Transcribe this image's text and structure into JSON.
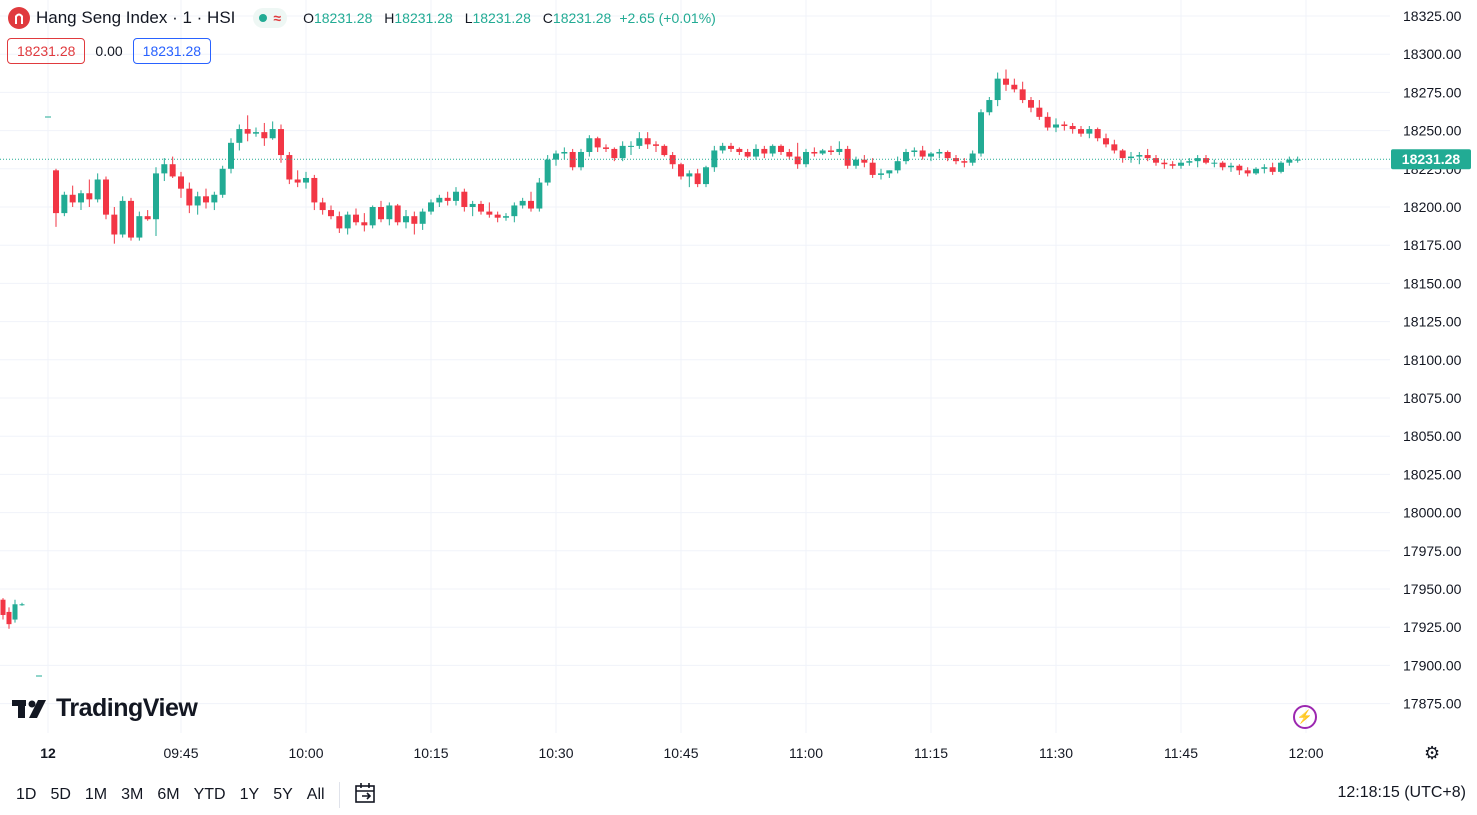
{
  "header": {
    "symbol_icon": "hsi-logo-icon",
    "title": "Hang Seng Index · 1 · HSI",
    "status_icon": "market-open-dot-icon",
    "data_icon": "delayed-data-wave-icon",
    "ohlc": [
      {
        "key": "O",
        "value": "18231.28"
      },
      {
        "key": "H",
        "value": "18231.28"
      },
      {
        "key": "L",
        "value": "18231.28"
      },
      {
        "key": "C",
        "value": "18231.28"
      }
    ],
    "change": "+2.65 (+0.01%)",
    "sell_price": "18231.28",
    "spread": "0.00",
    "buy_price": "18231.28"
  },
  "watermark": {
    "logo_icon": "tradingview-logo-icon",
    "text": "TradingView"
  },
  "bottom_bar": {
    "ranges": [
      "1D",
      "5D",
      "1M",
      "3M",
      "6M",
      "YTD",
      "1Y",
      "5Y",
      "All"
    ],
    "goto_icon": "calendar-goto-icon",
    "clock": "12:18:15 (UTC+8)"
  },
  "icons": {
    "bolt": "lightning-icon",
    "settings": "gear-icon"
  },
  "colors": {
    "up": "#22ab94",
    "down": "#f23645",
    "price_tag": "#22ab94",
    "grid": "#f0f3fa"
  },
  "chart_data": {
    "type": "candlestick",
    "symbol": "HSI",
    "interval": "1",
    "y_ticks": [
      "18325.00",
      "18300.00",
      "18275.00",
      "18250.00",
      "18225.00",
      "18200.00",
      "18175.00",
      "18150.00",
      "18125.00",
      "18100.00",
      "18075.00",
      "18050.00",
      "18025.00",
      "18000.00",
      "17975.00",
      "17950.00",
      "17925.00",
      "17900.00",
      "17875.00"
    ],
    "ylim": [
      17863,
      18335
    ],
    "x_ticks": [
      "12",
      "09:45",
      "10:00",
      "10:15",
      "10:30",
      "10:45",
      "11:00",
      "11:15",
      "11:30",
      "11:45",
      "12:00"
    ],
    "last_price": "18231.28",
    "grid": true,
    "previous_session_tail": [
      {
        "o": 17943,
        "h": 17944,
        "l": 17930,
        "c": 17933
      },
      {
        "o": 17935,
        "h": 17938,
        "l": 17924,
        "c": 17927
      },
      {
        "o": 17930,
        "h": 17943,
        "l": 17928,
        "c": 17940
      },
      {
        "o": 17940,
        "h": 17941,
        "l": 17939,
        "c": 17940
      }
    ],
    "candles": [
      [
        18224,
        18225,
        18187,
        18196
      ],
      [
        18196,
        18210,
        18194,
        18208
      ],
      [
        18208,
        18214,
        18200,
        18203
      ],
      [
        18203,
        18211,
        18198,
        18209
      ],
      [
        18209,
        18218,
        18200,
        18205
      ],
      [
        18205,
        18222,
        18203,
        18218
      ],
      [
        18218,
        18220,
        18192,
        18195
      ],
      [
        18195,
        18200,
        18176,
        18182
      ],
      [
        18182,
        18207,
        18180,
        18204
      ],
      [
        18204,
        18206,
        18178,
        18180
      ],
      [
        18180,
        18197,
        18178,
        18194
      ],
      [
        18194,
        18198,
        18191,
        18192
      ],
      [
        18192,
        18226,
        18181,
        18222
      ],
      [
        18222,
        18232,
        18217,
        18228
      ],
      [
        18228,
        18233,
        18219,
        18220
      ],
      [
        18220,
        18223,
        18206,
        18212
      ],
      [
        18212,
        18216,
        18196,
        18201
      ],
      [
        18201,
        18210,
        18195,
        18207
      ],
      [
        18207,
        18212,
        18199,
        18203
      ],
      [
        18203,
        18210,
        18198,
        18208
      ],
      [
        18208,
        18227,
        18206,
        18225
      ],
      [
        18225,
        18245,
        18222,
        18242
      ],
      [
        18242,
        18254,
        18237,
        18251
      ],
      [
        18251,
        18260,
        18243,
        18248
      ],
      [
        18248,
        18252,
        18246,
        18249
      ],
      [
        18249,
        18255,
        18240,
        18245
      ],
      [
        18245,
        18256,
        18244,
        18251
      ],
      [
        18251,
        18254,
        18229,
        18234
      ],
      [
        18234,
        18236,
        18215,
        18218
      ],
      [
        18218,
        18224,
        18213,
        18216
      ],
      [
        18216,
        18223,
        18212,
        18219
      ],
      [
        18219,
        18221,
        18198,
        18203
      ],
      [
        18203,
        18206,
        18195,
        18198
      ],
      [
        18198,
        18201,
        18192,
        18194
      ],
      [
        18194,
        18197,
        18183,
        18186
      ],
      [
        18186,
        18197,
        18182,
        18195
      ],
      [
        18195,
        18199,
        18188,
        18190
      ],
      [
        18190,
        18196,
        18184,
        18188
      ],
      [
        18188,
        18201,
        18186,
        18200
      ],
      [
        18200,
        18204,
        18190,
        18192
      ],
      [
        18192,
        18203,
        18188,
        18201
      ],
      [
        18201,
        18202,
        18188,
        18190
      ],
      [
        18190,
        18198,
        18186,
        18194
      ],
      [
        18194,
        18197,
        18182,
        18189
      ],
      [
        18189,
        18199,
        18185,
        18197
      ],
      [
        18197,
        18205,
        18195,
        18203
      ],
      [
        18203,
        18208,
        18200,
        18206
      ],
      [
        18206,
        18210,
        18201,
        18204
      ],
      [
        18204,
        18213,
        18201,
        18210
      ],
      [
        18210,
        18212,
        18197,
        18200
      ],
      [
        18200,
        18204,
        18194,
        18202
      ],
      [
        18202,
        18204,
        18195,
        18197
      ],
      [
        18197,
        18203,
        18193,
        18195
      ],
      [
        18195,
        18197,
        18190,
        18193
      ],
      [
        18193,
        18196,
        18191,
        18194
      ],
      [
        18194,
        18203,
        18190,
        18201
      ],
      [
        18201,
        18206,
        18199,
        18204
      ],
      [
        18204,
        18210,
        18197,
        18199
      ],
      [
        18199,
        18219,
        18197,
        18216
      ],
      [
        18216,
        18234,
        18214,
        18231
      ],
      [
        18231,
        18237,
        18227,
        18235
      ],
      [
        18235,
        18239,
        18231,
        18236
      ],
      [
        18236,
        18238,
        18224,
        18226
      ],
      [
        18226,
        18238,
        18224,
        18236
      ],
      [
        18236,
        18247,
        18233,
        18245
      ],
      [
        18245,
        18246,
        18236,
        18239
      ],
      [
        18239,
        18241,
        18236,
        18238
      ],
      [
        18238,
        18239,
        18230,
        18232
      ],
      [
        18232,
        18243,
        18230,
        18240
      ],
      [
        18240,
        18243,
        18234,
        18240
      ],
      [
        18240,
        18249,
        18238,
        18245
      ],
      [
        18245,
        18249,
        18238,
        18241
      ],
      [
        18241,
        18243,
        18236,
        18240
      ],
      [
        18240,
        18241,
        18233,
        18234
      ],
      [
        18234,
        18236,
        18225,
        18228
      ],
      [
        18228,
        18229,
        18218,
        18220
      ],
      [
        18220,
        18224,
        18213,
        18222
      ],
      [
        18222,
        18225,
        18213,
        18215
      ],
      [
        18215,
        18227,
        18213,
        18226
      ],
      [
        18226,
        18240,
        18223,
        18237
      ],
      [
        18237,
        18242,
        18235,
        18240
      ],
      [
        18240,
        18242,
        18236,
        18238
      ],
      [
        18238,
        18239,
        18234,
        18236
      ],
      [
        18236,
        18238,
        18232,
        18233
      ],
      [
        18233,
        18241,
        18231,
        18238
      ],
      [
        18238,
        18240,
        18232,
        18235
      ],
      [
        18235,
        18241,
        18233,
        18240
      ],
      [
        18240,
        18241,
        18234,
        18236
      ],
      [
        18236,
        18238,
        18231,
        18233
      ],
      [
        18233,
        18242,
        18225,
        18228
      ],
      [
        18228,
        18238,
        18226,
        18236
      ],
      [
        18236,
        18239,
        18233,
        18235
      ],
      [
        18235,
        18238,
        18234,
        18237
      ],
      [
        18237,
        18240,
        18234,
        18236
      ],
      [
        18236,
        18243,
        18234,
        18238
      ],
      [
        18238,
        18240,
        18225,
        18227
      ],
      [
        18227,
        18233,
        18225,
        18231
      ],
      [
        18231,
        18234,
        18226,
        18229
      ],
      [
        18229,
        18232,
        18219,
        18221
      ],
      [
        18221,
        18225,
        18218,
        18222
      ],
      [
        18222,
        18224,
        18219,
        18224
      ],
      [
        18224,
        18233,
        18222,
        18230
      ],
      [
        18230,
        18238,
        18228,
        18236
      ],
      [
        18236,
        18239,
        18233,
        18237
      ],
      [
        18237,
        18240,
        18231,
        18233
      ],
      [
        18233,
        18236,
        18230,
        18235
      ],
      [
        18235,
        18238,
        18232,
        18236
      ],
      [
        18236,
        18237,
        18230,
        18232
      ],
      [
        18232,
        18234,
        18228,
        18230
      ],
      [
        18230,
        18232,
        18226,
        18229
      ],
      [
        18229,
        18237,
        18227,
        18235
      ],
      [
        18235,
        18264,
        18233,
        18262
      ],
      [
        18262,
        18272,
        18260,
        18270
      ],
      [
        18270,
        18288,
        18266,
        18284
      ],
      [
        18284,
        18290,
        18276,
        18280
      ],
      [
        18280,
        18284,
        18275,
        18277
      ],
      [
        18277,
        18282,
        18268,
        18270
      ],
      [
        18270,
        18272,
        18262,
        18265
      ],
      [
        18265,
        18270,
        18257,
        18259
      ],
      [
        18259,
        18262,
        18250,
        18252
      ],
      [
        18252,
        18258,
        18249,
        18254
      ],
      [
        18254,
        18256,
        18250,
        18253
      ],
      [
        18253,
        18255,
        18248,
        18251
      ],
      [
        18251,
        18253,
        18246,
        18248
      ],
      [
        18248,
        18253,
        18245,
        18251
      ],
      [
        18251,
        18252,
        18243,
        18245
      ],
      [
        18245,
        18248,
        18239,
        18241
      ],
      [
        18241,
        18244,
        18235,
        18237
      ],
      [
        18237,
        18238,
        18229,
        18232
      ],
      [
        18232,
        18236,
        18229,
        18233
      ],
      [
        18233,
        18236,
        18228,
        18234
      ],
      [
        18234,
        18238,
        18230,
        18232
      ],
      [
        18232,
        18234,
        18227,
        18229
      ],
      [
        18229,
        18231,
        18225,
        18228
      ],
      [
        18228,
        18230,
        18225,
        18227
      ],
      [
        18227,
        18231,
        18225,
        18229
      ],
      [
        18229,
        18232,
        18227,
        18230
      ],
      [
        18230,
        18234,
        18226,
        18232
      ],
      [
        18232,
        18234,
        18228,
        18229
      ],
      [
        18229,
        18231,
        18226,
        18229
      ],
      [
        18229,
        18230,
        18224,
        18226
      ],
      [
        18226,
        18229,
        18223,
        18227
      ],
      [
        18227,
        18228,
        18221,
        18224
      ],
      [
        18224,
        18226,
        18220,
        18222
      ],
      [
        18222,
        18226,
        18221,
        18225
      ],
      [
        18225,
        18228,
        18222,
        18226
      ],
      [
        18226,
        18229,
        18221,
        18223
      ],
      [
        18223,
        18230,
        18222,
        18229
      ],
      [
        18229,
        18233,
        18227,
        18231
      ],
      [
        18231,
        18233,
        18229,
        18231
      ]
    ]
  }
}
